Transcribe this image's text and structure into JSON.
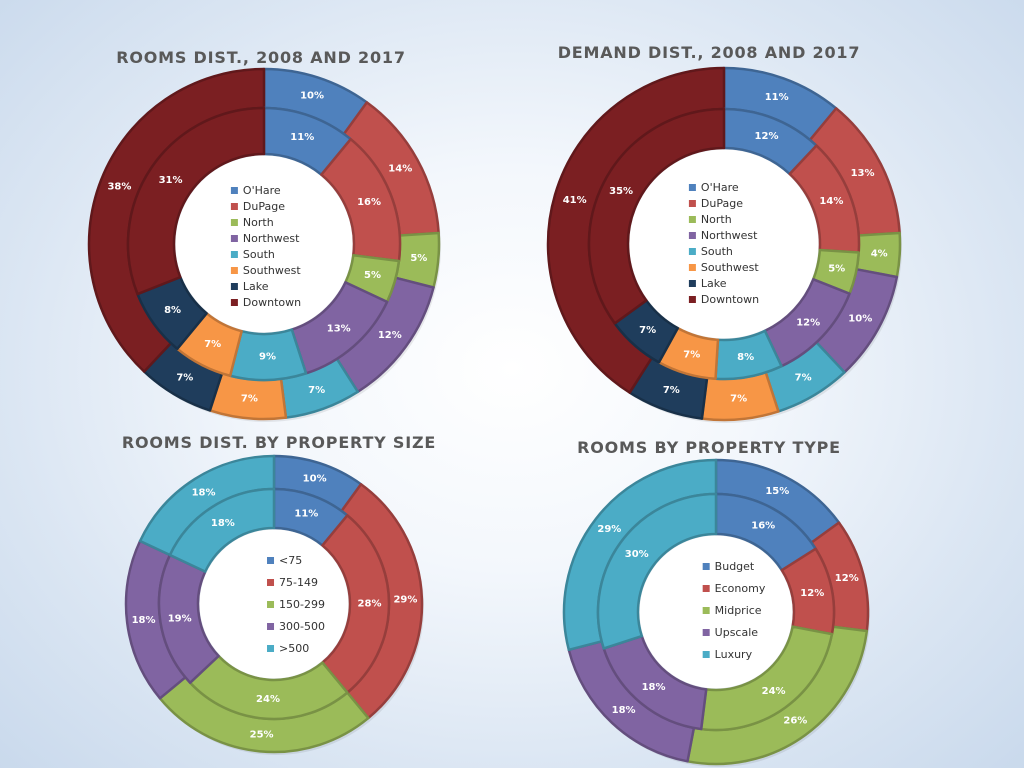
{
  "chart_data": [
    {
      "type": "pie",
      "subtype": "double-ring-donut",
      "title": "ROOMS DIST., 2008 AND 2017",
      "categories": [
        "O'Hare",
        "DuPage",
        "North",
        "Northwest",
        "South",
        "Southwest",
        "Lake",
        "Downtown"
      ],
      "colors": [
        "#4f81bd",
        "#c0504d",
        "#9bbb59",
        "#8064a2",
        "#4bacc6",
        "#f79646",
        "#1f3d5c",
        "#7b1f22"
      ],
      "series": [
        {
          "ring": "outer",
          "values": [
            10,
            14,
            5,
            12,
            7,
            7,
            7,
            38
          ],
          "labels": [
            "10%",
            "14%",
            "5%",
            "12%",
            "7%",
            "7%",
            "7%",
            "38%"
          ]
        },
        {
          "ring": "inner",
          "values": [
            11,
            16,
            5,
            13,
            9,
            7,
            8,
            31
          ],
          "labels": [
            "11%",
            "16%",
            "5%",
            "13%",
            "9%",
            "7%",
            "8%",
            "31%"
          ]
        }
      ]
    },
    {
      "type": "pie",
      "subtype": "double-ring-donut",
      "title": "DEMAND DIST., 2008 AND 2017",
      "categories": [
        "O'Hare",
        "DuPage",
        "North",
        "Northwest",
        "South",
        "Southwest",
        "Lake",
        "Downtown"
      ],
      "colors": [
        "#4f81bd",
        "#c0504d",
        "#9bbb59",
        "#8064a2",
        "#4bacc6",
        "#f79646",
        "#1f3d5c",
        "#7b1f22"
      ],
      "series": [
        {
          "ring": "outer",
          "values": [
            11,
            13,
            4,
            10,
            7,
            7,
            7,
            41
          ],
          "labels": [
            "11%",
            "13%",
            "4%",
            "10%",
            "7%",
            "7%",
            "7%",
            "41%"
          ]
        },
        {
          "ring": "inner",
          "values": [
            12,
            14,
            5,
            12,
            8,
            7,
            7,
            35
          ],
          "labels": [
            "12%",
            "14%",
            "5%",
            "12%",
            "8%",
            "7%",
            "7%",
            "35%"
          ]
        }
      ]
    },
    {
      "type": "pie",
      "subtype": "double-ring-donut",
      "title": "ROOMS DIST. BY PROPERTY SIZE",
      "categories": [
        "<75",
        "75-149",
        "150-299",
        "300-500",
        ">500"
      ],
      "colors": [
        "#4f81bd",
        "#c0504d",
        "#9bbb59",
        "#8064a2",
        "#4bacc6"
      ],
      "series": [
        {
          "ring": "outer",
          "values": [
            10,
            29,
            25,
            18,
            18
          ],
          "labels": [
            "10%",
            "29%",
            "25%",
            "18%",
            "18%"
          ]
        },
        {
          "ring": "inner",
          "values": [
            11,
            28,
            24,
            19,
            18
          ],
          "labels": [
            "11%",
            "28%",
            "24%",
            "19%",
            "18%"
          ]
        }
      ]
    },
    {
      "type": "pie",
      "subtype": "double-ring-donut",
      "title": "ROOMS BY PROPERTY TYPE",
      "categories": [
        "Budget",
        "Economy",
        "Midprice",
        "Upscale",
        "Luxury"
      ],
      "colors": [
        "#4f81bd",
        "#c0504d",
        "#9bbb59",
        "#8064a2",
        "#4bacc6"
      ],
      "series": [
        {
          "ring": "outer",
          "values": [
            15,
            12,
            26,
            18,
            29
          ],
          "labels": [
            "15%",
            "12%",
            "26%",
            "18%",
            "29%"
          ]
        },
        {
          "ring": "inner",
          "values": [
            16,
            12,
            24,
            18,
            30
          ],
          "labels": [
            "16%",
            "12%",
            "24%",
            "18%",
            "30%"
          ]
        }
      ]
    }
  ]
}
